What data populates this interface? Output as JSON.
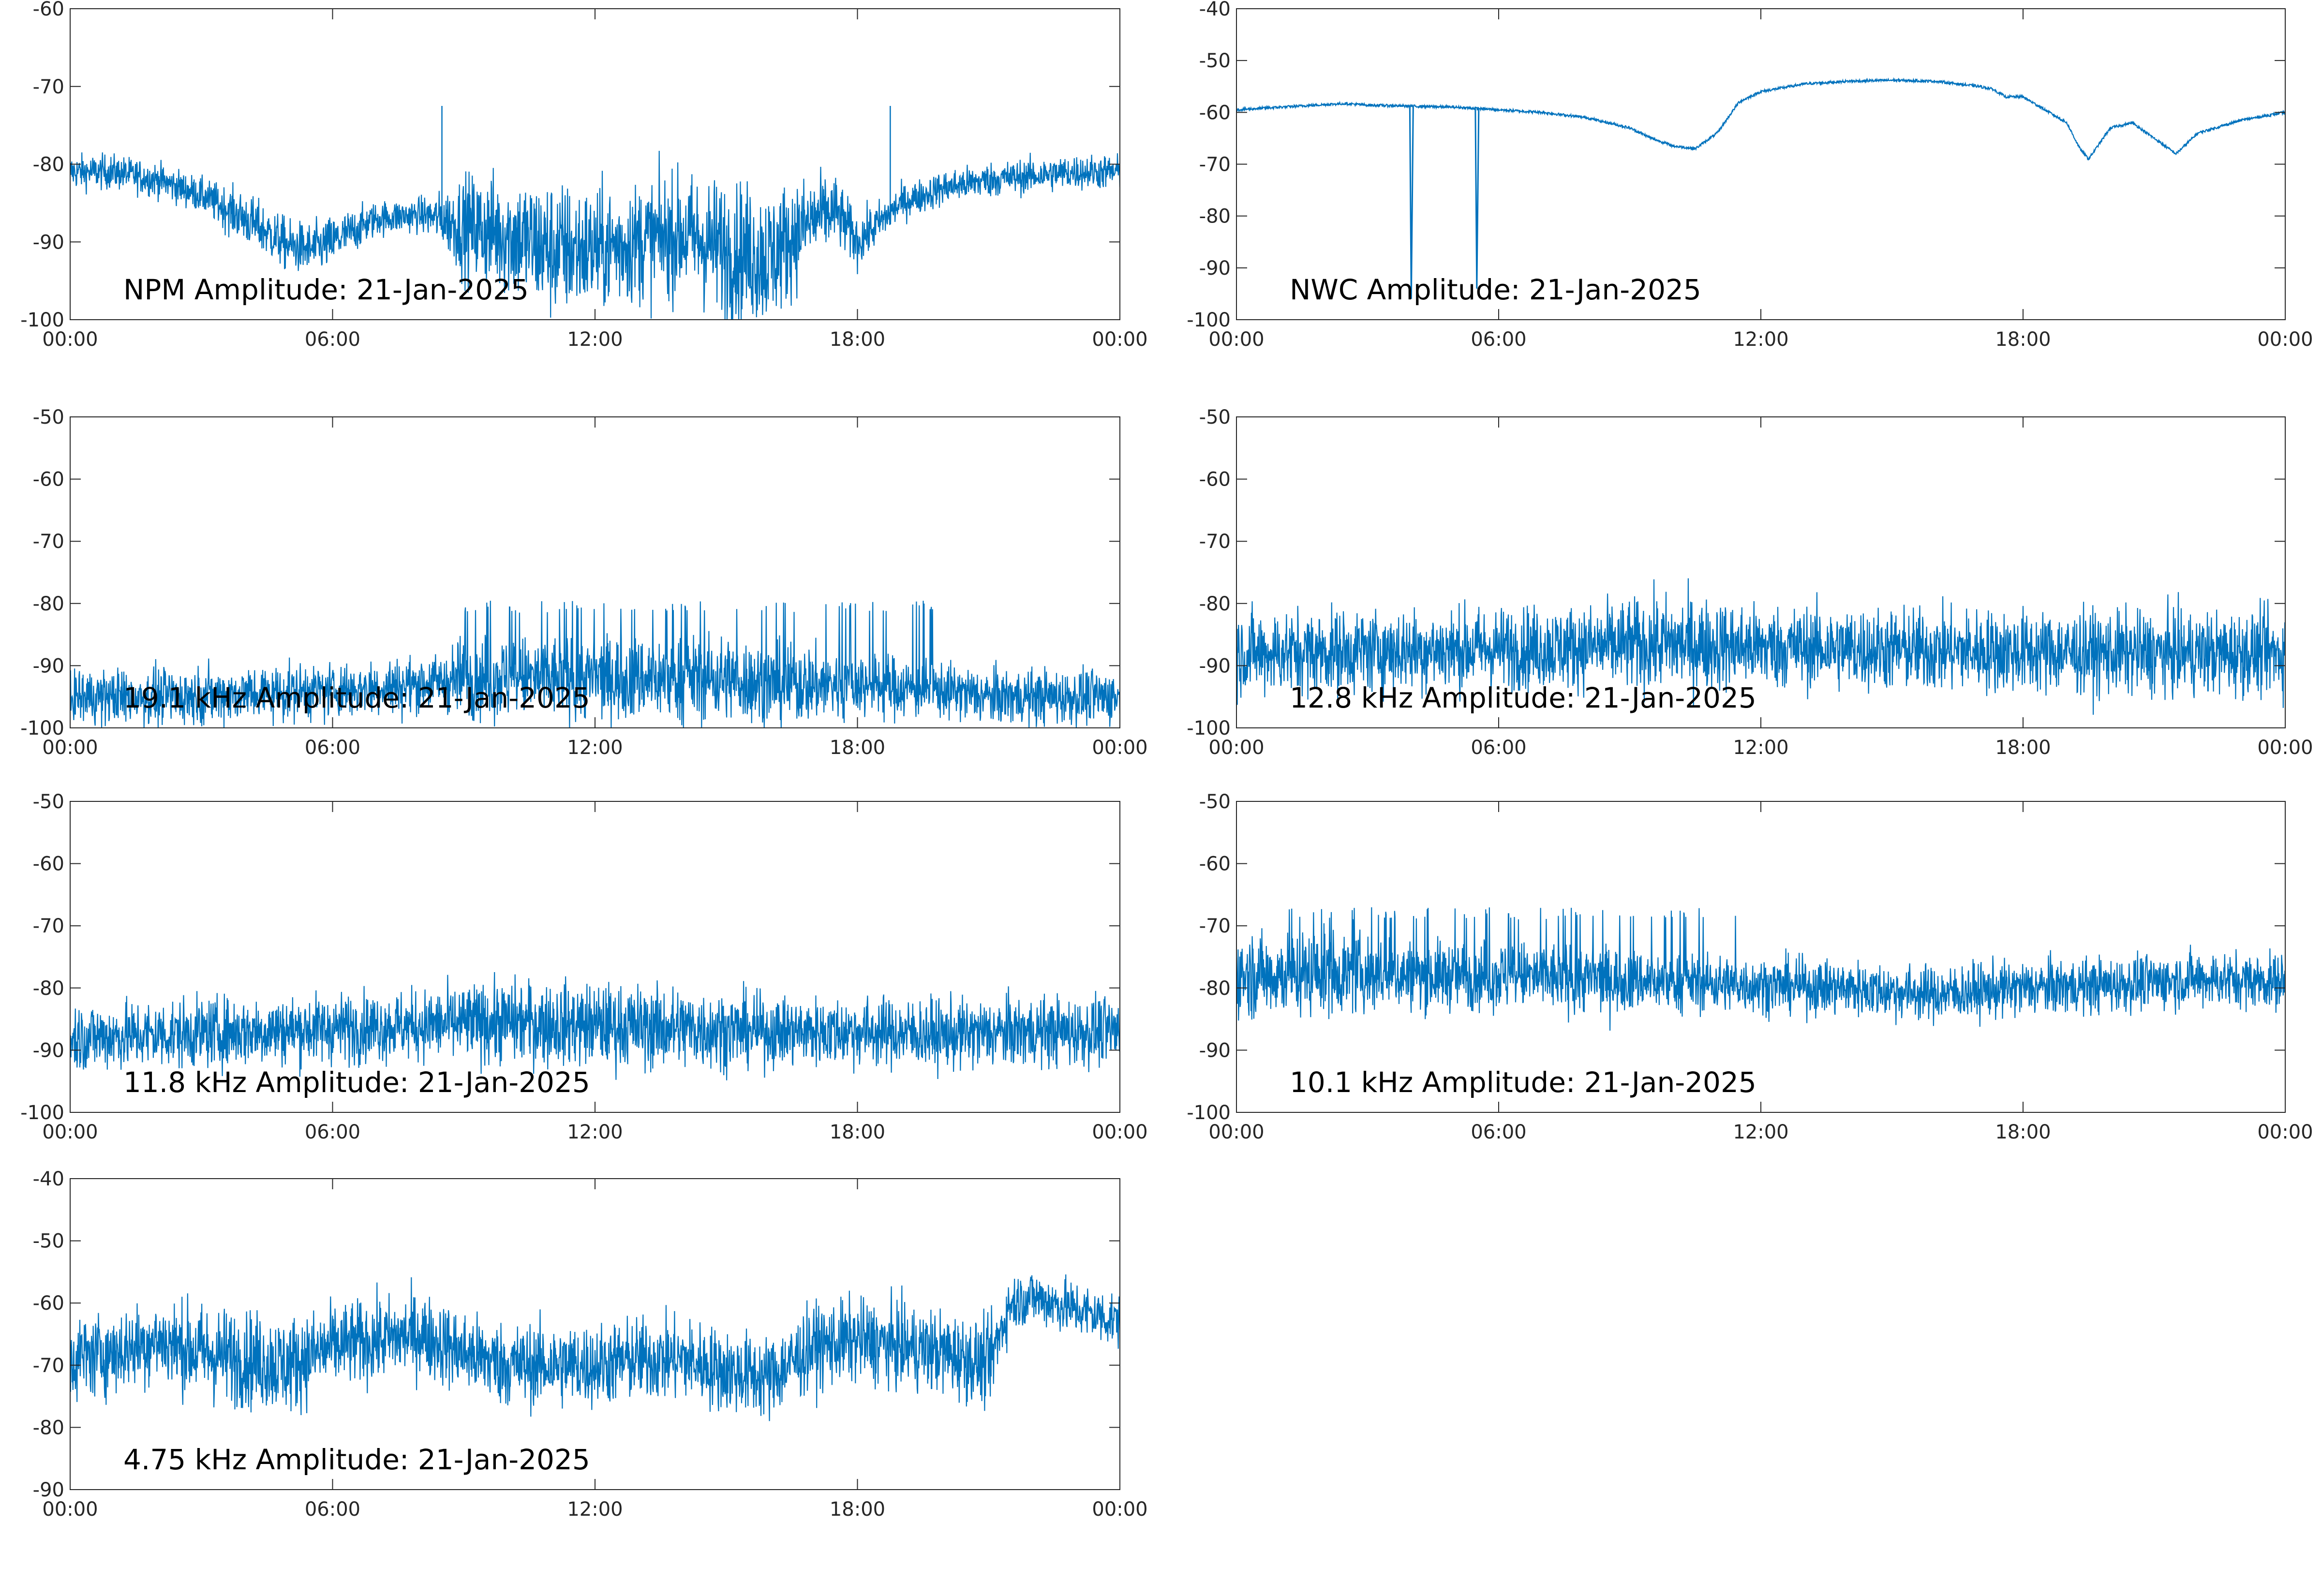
{
  "figure": {
    "line_color": "#0072bd",
    "axis_color": "#262626",
    "background": "#ffffff"
  },
  "chart_data": [
    {
      "type": "line",
      "title": "NPM Amplitude: 21-Jan-2025",
      "xlabel": "",
      "ylabel": "",
      "x_tick_labels": [
        "00:00",
        "06:00",
        "12:00",
        "18:00",
        "00:00"
      ],
      "xlim": [
        0,
        24
      ],
      "ylim": [
        -100,
        -60
      ],
      "y_ticks": [
        -100,
        -90,
        -80,
        -70,
        -60
      ],
      "grid": false,
      "series": [
        {
          "x": [
            0,
            1,
            2,
            3,
            4,
            5,
            5.5,
            6,
            7,
            8,
            8.5,
            9,
            10,
            11,
            12,
            13,
            14,
            15,
            16,
            17,
            17.5,
            18,
            19,
            20,
            21,
            22,
            23,
            24
          ],
          "mean": [
            -81,
            -81,
            -82,
            -84,
            -87,
            -90.5,
            -91,
            -90,
            -87,
            -86.5,
            -87,
            -88,
            -89,
            -91,
            -91,
            -90,
            -89,
            -91,
            -92,
            -87,
            -86,
            -90,
            -85,
            -83,
            -82,
            -81.5,
            -81,
            -81
          ],
          "spread": [
            2,
            2,
            2,
            2,
            3,
            3,
            3,
            3,
            2,
            2,
            3,
            6,
            7,
            8,
            7,
            7,
            7,
            8,
            8,
            5,
            4,
            3,
            2,
            2,
            2,
            2,
            2,
            2
          ]
        }
      ],
      "spikes": [
        [
          8.5,
          -72.5
        ],
        [
          18.75,
          -72.5
        ]
      ]
    },
    {
      "type": "line",
      "title": "NWC Amplitude: 21-Jan-2025",
      "xlabel": "",
      "ylabel": "",
      "x_tick_labels": [
        "00:00",
        "06:00",
        "12:00",
        "18:00",
        "00:00"
      ],
      "xlim": [
        0,
        24
      ],
      "ylim": [
        -100,
        -40
      ],
      "y_ticks": [
        -100,
        -90,
        -80,
        -70,
        -60,
        -50,
        -40
      ],
      "grid": false,
      "series": [
        {
          "x": [
            0,
            1,
            2,
            2.5,
            3,
            4,
            5,
            6,
            7,
            8,
            9,
            9.5,
            10,
            10.5,
            11,
            11.5,
            12,
            13,
            14,
            15,
            16,
            17,
            17.3,
            17.6,
            18,
            19,
            19.3,
            19.5,
            20,
            20.5,
            21,
            21.5,
            22,
            23,
            24
          ],
          "mean": [
            -59.5,
            -59,
            -58.5,
            -58.3,
            -58.6,
            -58.8,
            -59,
            -59.5,
            -60,
            -61,
            -63,
            -65,
            -66.5,
            -67,
            -64,
            -58,
            -56,
            -54.5,
            -54,
            -53.8,
            -54,
            -55,
            -55.5,
            -57,
            -57,
            -62,
            -67,
            -69,
            -63,
            -62,
            -65,
            -68,
            -64,
            -61.5,
            -60
          ]
        }
      ],
      "dips": [
        [
          4.0,
          -96
        ],
        [
          5.5,
          -94
        ]
      ]
    },
    {
      "type": "line",
      "title": "19.1 kHz Amplitude: 21-Jan-2025",
      "xlabel": "",
      "ylabel": "",
      "x_tick_labels": [
        "00:00",
        "06:00",
        "12:00",
        "18:00",
        "00:00"
      ],
      "xlim": [
        0,
        24
      ],
      "ylim": [
        -100,
        -50
      ],
      "y_ticks": [
        -100,
        -90,
        -80,
        -70,
        -60,
        -50
      ],
      "grid": false,
      "series": [
        {
          "x": [
            0,
            2,
            4,
            6,
            8,
            8.5,
            9,
            12,
            15,
            16,
            18,
            20,
            21,
            22,
            24
          ],
          "mean": [
            -95,
            -95,
            -94.5,
            -94,
            -93,
            -92.5,
            -92,
            -92,
            -92,
            -93,
            -93,
            -94,
            -95,
            -95,
            -95
          ],
          "spread": [
            4,
            4,
            4,
            4,
            4,
            4,
            6,
            6,
            6,
            6,
            5,
            4,
            4,
            4,
            4
          ]
        }
      ],
      "spike_band": [
        9,
        20.2,
        -80.5
      ]
    },
    {
      "type": "line",
      "title": "12.8 kHz Amplitude: 21-Jan-2025",
      "xlabel": "",
      "ylabel": "",
      "x_tick_labels": [
        "00:00",
        "06:00",
        "12:00",
        "18:00",
        "00:00"
      ],
      "xlim": [
        0,
        24
      ],
      "ylim": [
        -100,
        -50
      ],
      "y_ticks": [
        -100,
        -90,
        -80,
        -70,
        -60,
        -50
      ],
      "grid": false,
      "series": [
        {
          "x": [
            0,
            4,
            8,
            10,
            12,
            16,
            20,
            24
          ],
          "mean": [
            -88,
            -87.5,
            -87,
            -86.5,
            -87,
            -87.5,
            -88,
            -88
          ],
          "spread": [
            6,
            6,
            6,
            7,
            6,
            6,
            6,
            6
          ]
        }
      ]
    },
    {
      "type": "line",
      "title": "11.8 kHz Amplitude: 21-Jan-2025",
      "xlabel": "",
      "ylabel": "",
      "x_tick_labels": [
        "00:00",
        "06:00",
        "12:00",
        "18:00",
        "00:00"
      ],
      "xlim": [
        0,
        24
      ],
      "ylim": [
        -100,
        -50
      ],
      "y_ticks": [
        -100,
        -90,
        -80,
        -70,
        -60,
        -50
      ],
      "grid": false,
      "series": [
        {
          "x": [
            0,
            2,
            4,
            6,
            8,
            10,
            12,
            14,
            16,
            18,
            20,
            22,
            24
          ],
          "mean": [
            -88,
            -87.5,
            -87,
            -86.5,
            -86,
            -85.5,
            -86,
            -86.5,
            -87,
            -87,
            -87.5,
            -87,
            -87
          ],
          "spread": [
            5,
            5,
            5,
            5,
            5,
            6,
            6,
            6,
            5,
            5,
            5,
            5,
            5
          ]
        }
      ]
    },
    {
      "type": "line",
      "title": "10.1 kHz Amplitude: 21-Jan-2025",
      "xlabel": "",
      "ylabel": "",
      "x_tick_labels": [
        "00:00",
        "06:00",
        "12:00",
        "18:00",
        "00:00"
      ],
      "xlim": [
        0,
        24
      ],
      "ylim": [
        -100,
        -50
      ],
      "y_ticks": [
        -100,
        -90,
        -80,
        -70,
        -60,
        -50
      ],
      "grid": false,
      "series": [
        {
          "x": [
            0,
            2,
            4,
            6,
            8,
            10,
            12,
            14,
            16,
            18,
            20,
            22,
            24
          ],
          "mean": [
            -78,
            -77.5,
            -78,
            -78,
            -78.5,
            -79,
            -79.5,
            -80,
            -81,
            -80,
            -79.5,
            -78.5,
            -79
          ],
          "spread": [
            6,
            6,
            5,
            5,
            5,
            4,
            4,
            4,
            4,
            4,
            4,
            4,
            4
          ]
        }
      ],
      "spike_band": [
        0.2,
        11.5,
        -68
      ]
    },
    {
      "type": "line",
      "title": "4.75 kHz Amplitude: 21-Jan-2025",
      "xlabel": "",
      "ylabel": "",
      "x_tick_labels": [
        "00:00",
        "06:00",
        "12:00",
        "18:00",
        "00:00"
      ],
      "xlim": [
        0,
        24
      ],
      "ylim": [
        -90,
        -40
      ],
      "y_ticks": [
        -90,
        -80,
        -70,
        -60,
        -50,
        -40
      ],
      "grid": false,
      "series": [
        {
          "x": [
            0,
            1,
            2,
            3,
            4,
            5,
            6,
            7,
            8,
            9,
            10,
            11,
            12,
            13,
            14,
            15,
            16,
            17,
            18,
            19,
            20,
            21,
            21.5,
            22,
            23,
            24
          ],
          "mean": [
            -69,
            -68,
            -66,
            -68,
            -69,
            -70,
            -67,
            -66,
            -65,
            -68,
            -70,
            -70,
            -70,
            -69,
            -69,
            -71,
            -72,
            -67,
            -66,
            -67,
            -68,
            -70,
            -60,
            -59,
            -61,
            -63
          ],
          "spread": [
            6,
            6,
            6,
            7,
            7,
            7,
            6,
            6,
            6,
            6,
            6,
            6,
            6,
            6,
            6,
            6,
            6,
            6,
            6,
            6,
            6,
            6,
            4,
            4,
            4,
            4
          ]
        }
      ]
    }
  ]
}
